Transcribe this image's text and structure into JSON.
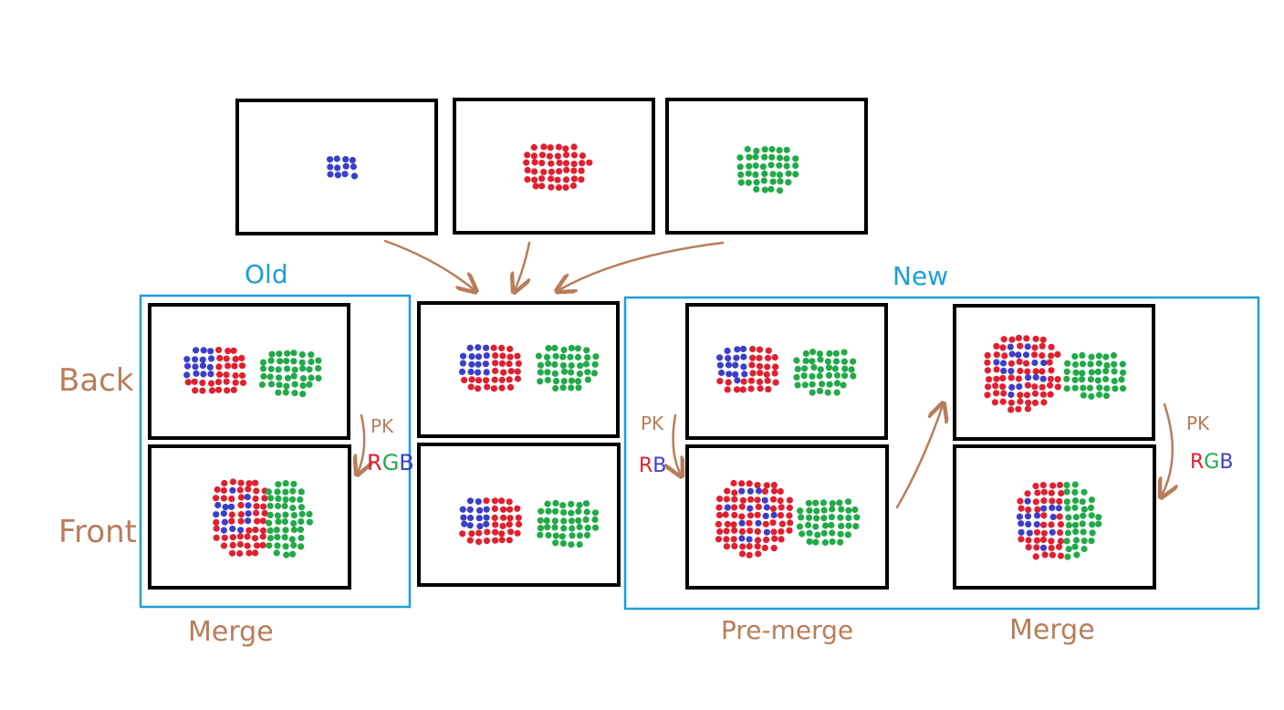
{
  "colors": {
    "blue_dots": "#3b3fc8",
    "red_dots": "#e0202f",
    "green_dots": "#22aa48",
    "annotation": "#b87d5a",
    "group_box": "#1b9fd9"
  },
  "groups": {
    "old_label": "Old",
    "new_label": "New"
  },
  "rows": {
    "back_label": "Back",
    "front_label": "Front"
  },
  "captions": {
    "old_merge": "Merge",
    "new_premerge": "Pre-merge",
    "new_merge": "Merge"
  },
  "annotations": {
    "pk": "PK",
    "rgb": [
      "R",
      "G",
      "B"
    ],
    "rb": [
      "R",
      "B"
    ]
  }
}
